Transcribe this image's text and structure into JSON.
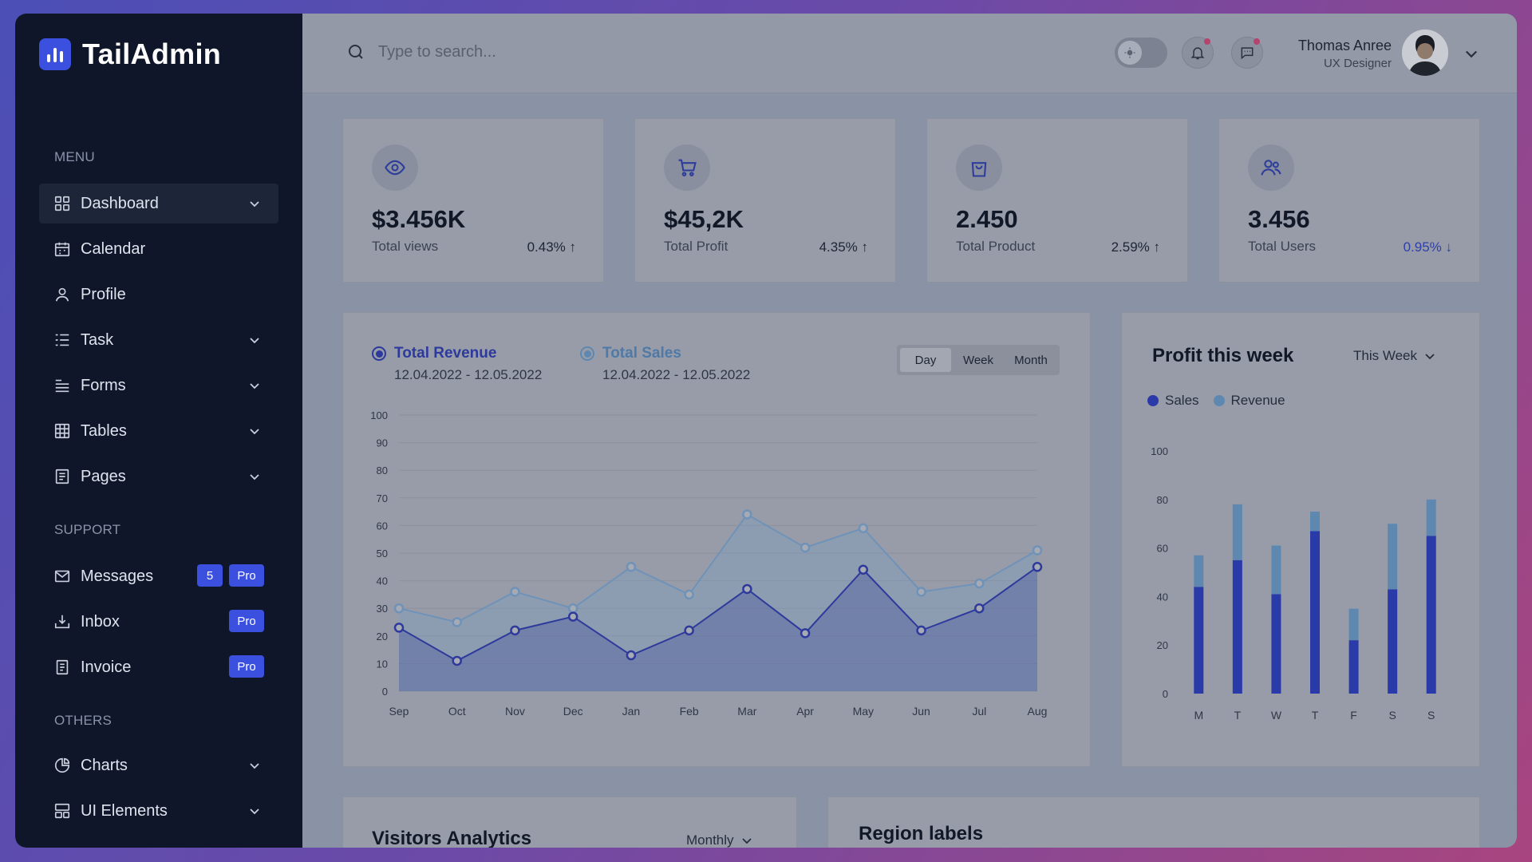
{
  "brand": {
    "name": "TailAdmin"
  },
  "sidebar": {
    "groups": {
      "menu": "MENU",
      "support": "SUPPORT",
      "others": "OTHERS"
    },
    "items": [
      {
        "label": "Dashboard",
        "icon": "grid-icon"
      },
      {
        "label": "Calendar",
        "icon": "calendar-icon"
      },
      {
        "label": "Profile",
        "icon": "user-icon"
      },
      {
        "label": "Task",
        "icon": "list-icon"
      },
      {
        "label": "Forms",
        "icon": "forms-icon"
      },
      {
        "label": "Tables",
        "icon": "table-icon"
      },
      {
        "label": "Pages",
        "icon": "pages-icon"
      },
      {
        "label": "Messages",
        "icon": "mail-icon",
        "count": "5",
        "pro": "Pro"
      },
      {
        "label": "Inbox",
        "icon": "inbox-icon",
        "pro": "Pro"
      },
      {
        "label": "Invoice",
        "icon": "invoice-icon",
        "pro": "Pro"
      },
      {
        "label": "Charts",
        "icon": "pie-chart-icon"
      },
      {
        "label": "UI Elements",
        "icon": "layout-icon"
      }
    ]
  },
  "header": {
    "search_placeholder": "Type to search...",
    "user": {
      "name": "Thomas Anree",
      "role": "UX Designer"
    }
  },
  "stats": [
    {
      "value": "$3.456K",
      "label": "Total views",
      "change": "0.43%",
      "direction": "up",
      "icon": "eye-icon"
    },
    {
      "value": "$45,2K",
      "label": "Total Profit",
      "change": "4.35%",
      "direction": "up",
      "icon": "cart-icon"
    },
    {
      "value": "2.450",
      "label": "Total Product",
      "change": "2.59%",
      "direction": "up",
      "icon": "bag-icon"
    },
    {
      "value": "3.456",
      "label": "Total Users",
      "change": "0.95%",
      "direction": "down",
      "icon": "users-icon"
    }
  ],
  "revenue_card": {
    "legend": [
      {
        "title": "Total Revenue",
        "range": "12.04.2022 - 12.05.2022"
      },
      {
        "title": "Total Sales",
        "range": "12.04.2022 - 12.05.2022"
      }
    ],
    "tabs": [
      "Day",
      "Week",
      "Month"
    ],
    "active_tab": "Day"
  },
  "profit_card": {
    "title": "Profit this week",
    "period": "This Week",
    "legend": [
      "Sales",
      "Revenue"
    ]
  },
  "visitors_card": {
    "title": "Visitors Analytics",
    "period": "Monthly"
  },
  "region_card": {
    "title": "Region labels"
  },
  "colors": {
    "primary": "#3c50e0",
    "secondary": "#80caee",
    "sidebar": "#0f1629"
  },
  "chart_data": [
    {
      "type": "area",
      "categories": [
        "Sep",
        "Oct",
        "Nov",
        "Dec",
        "Jan",
        "Feb",
        "Mar",
        "Apr",
        "May",
        "Jun",
        "Jul",
        "Aug"
      ],
      "series": [
        {
          "name": "Total Revenue",
          "values": [
            23,
            11,
            22,
            27,
            13,
            22,
            37,
            21,
            44,
            22,
            30,
            45
          ]
        },
        {
          "name": "Total Sales",
          "values": [
            30,
            25,
            36,
            30,
            45,
            35,
            64,
            52,
            59,
            36,
            39,
            51
          ]
        }
      ],
      "yticks": [
        0,
        10,
        20,
        30,
        40,
        50,
        60,
        70,
        80,
        90,
        100
      ],
      "ylim": [
        0,
        100
      ],
      "grid": true
    },
    {
      "type": "bar",
      "stacked": true,
      "categories": [
        "M",
        "T",
        "W",
        "T",
        "F",
        "S",
        "S"
      ],
      "series": [
        {
          "name": "Sales",
          "values": [
            44,
            55,
            41,
            67,
            22,
            43,
            65
          ]
        },
        {
          "name": "Revenue",
          "values": [
            13,
            23,
            20,
            8,
            13,
            27,
            15
          ]
        }
      ],
      "yticks": [
        0,
        20,
        40,
        60,
        80,
        100
      ],
      "ylim": [
        0,
        100
      ],
      "legend": "top-left"
    }
  ]
}
